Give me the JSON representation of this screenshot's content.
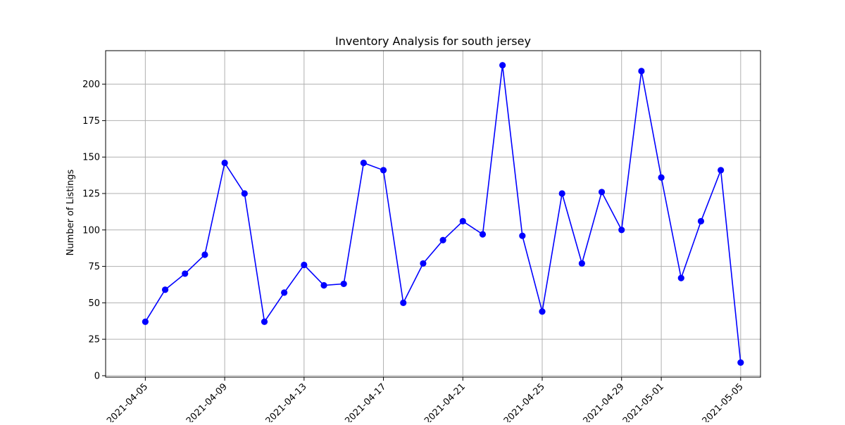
{
  "chart_data": {
    "type": "line",
    "title": "Inventory Analysis for south jersey",
    "xlabel": "",
    "ylabel": "Number of Listings",
    "x_type": "date",
    "xlim": [
      "2021-04-03",
      "2021-05-06"
    ],
    "ylim": [
      -1,
      223
    ],
    "x_ticks": [
      "2021-04-05",
      "2021-04-09",
      "2021-04-13",
      "2021-04-17",
      "2021-04-21",
      "2021-04-25",
      "2021-04-29",
      "2021-05-01",
      "2021-05-05"
    ],
    "y_ticks": [
      0,
      25,
      50,
      75,
      100,
      125,
      150,
      175,
      200
    ],
    "grid": true,
    "series": [
      {
        "color": "#0000ff",
        "marker": "circle",
        "x": [
          "2021-04-05",
          "2021-04-06",
          "2021-04-07",
          "2021-04-08",
          "2021-04-09",
          "2021-04-10",
          "2021-04-11",
          "2021-04-12",
          "2021-04-13",
          "2021-04-14",
          "2021-04-15",
          "2021-04-16",
          "2021-04-17",
          "2021-04-18",
          "2021-04-19",
          "2021-04-20",
          "2021-04-21",
          "2021-04-22",
          "2021-04-23",
          "2021-04-24",
          "2021-04-25",
          "2021-04-26",
          "2021-04-27",
          "2021-04-28",
          "2021-04-29",
          "2021-04-30",
          "2021-05-01",
          "2021-05-02",
          "2021-05-03",
          "2021-05-04",
          "2021-05-05"
        ],
        "values": [
          37,
          59,
          70,
          83,
          146,
          125,
          37,
          57,
          76,
          62,
          63,
          146,
          141,
          50,
          77,
          93,
          106,
          97,
          213,
          96,
          44,
          125,
          77,
          126,
          100,
          209,
          136,
          67,
          106,
          141,
          9
        ]
      }
    ]
  }
}
